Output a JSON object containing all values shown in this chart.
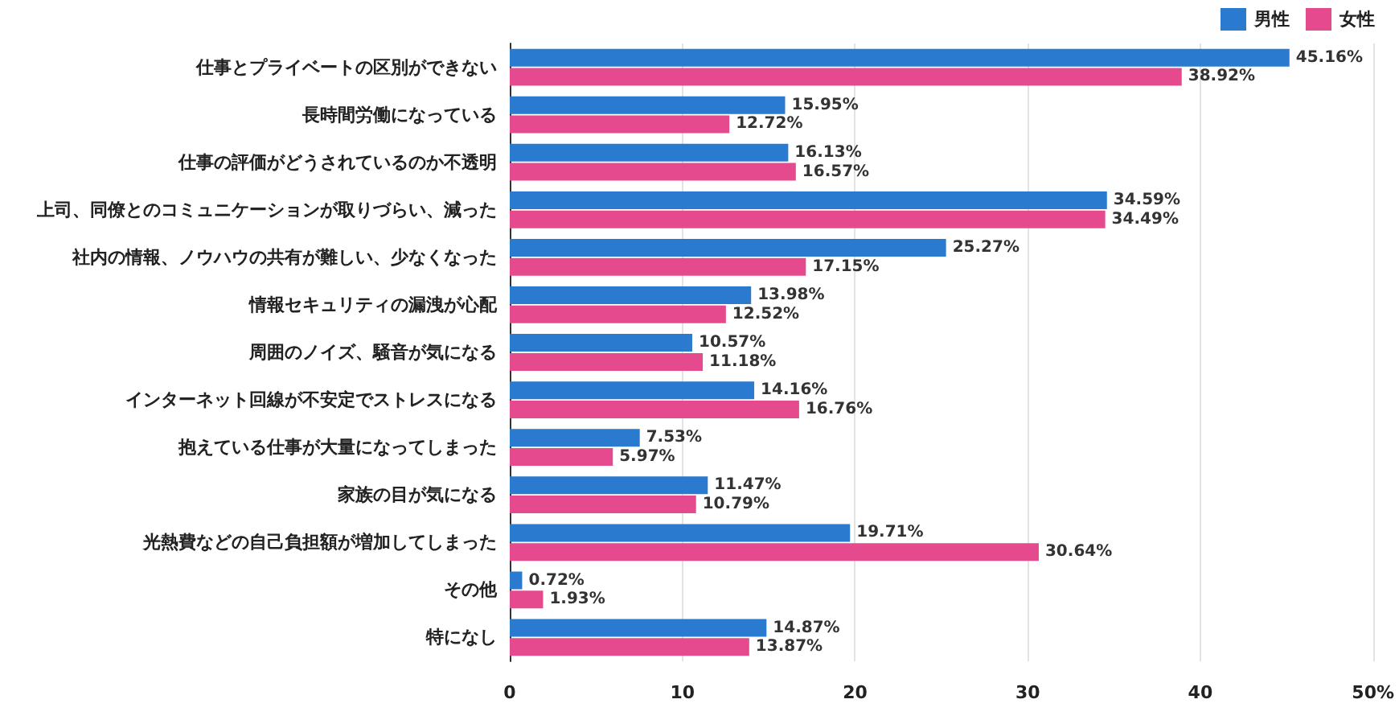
{
  "chart_data": {
    "type": "bar",
    "orientation": "horizontal",
    "categories": [
      "仕事とプライベートの区別ができない",
      "長時間労働になっている",
      "仕事の評価がどうされているのか不透明",
      "上司、同僚とのコミュニケーションが取りづらい、減った",
      "社内の情報、ノウハウの共有が難しい、少なくなった",
      "情報セキュリティの漏洩が心配",
      "周囲のノイズ、騒音が気になる",
      "インターネット回線が不安定でストレスになる",
      "抱えている仕事が大量になってしまった",
      "家族の目が気になる",
      "光熱費などの自己負担額が増加してしまった",
      "その他",
      "特になし"
    ],
    "series": [
      {
        "name": "男性",
        "color": "#2a7acf",
        "values": [
          45.16,
          15.95,
          16.13,
          34.59,
          25.27,
          13.98,
          10.57,
          14.16,
          7.53,
          11.47,
          19.71,
          0.72,
          14.87
        ],
        "value_labels": [
          "45.16%",
          "15.95%",
          "16.13%",
          "34.59%",
          "25.27%",
          "13.98%",
          "10.57%",
          "14.16%",
          "7.53%",
          "11.47%",
          "19.71%",
          "0.72%",
          "14.87%"
        ]
      },
      {
        "name": "女性",
        "color": "#e64a8e",
        "values": [
          38.92,
          12.72,
          16.57,
          34.49,
          17.15,
          12.52,
          11.18,
          16.76,
          5.97,
          10.79,
          30.64,
          1.93,
          13.87
        ],
        "value_labels": [
          "38.92%",
          "12.72%",
          "16.57%",
          "34.49%",
          "17.15%",
          "12.52%",
          "11.18%",
          "16.76%",
          "5.97%",
          "10.79%",
          "30.64%",
          "1.93%",
          "13.87%"
        ]
      }
    ],
    "xlim": [
      0,
      50
    ],
    "xticks": [
      0,
      10,
      20,
      30,
      40,
      {
        "value": 50,
        "label": "50%"
      }
    ],
    "grid": "x",
    "legend": "top right"
  }
}
